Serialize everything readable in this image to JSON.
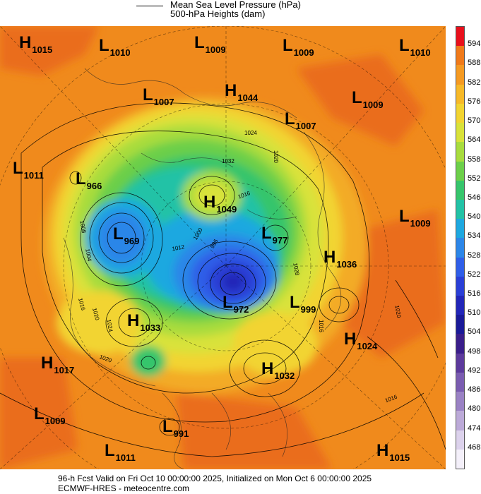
{
  "legend": {
    "line1": "Mean Sea Level Pressure (hPa)",
    "line2": "500-hPa Heights (dam)"
  },
  "pressure_labels": [
    {
      "type": "H",
      "value": "1015"
    },
    {
      "type": "L",
      "value": "1010"
    },
    {
      "type": "L",
      "value": "1009"
    },
    {
      "type": "L",
      "value": "1009"
    },
    {
      "type": "L",
      "value": "1010"
    },
    {
      "type": "L",
      "value": "1007"
    },
    {
      "type": "H",
      "value": "1044"
    },
    {
      "type": "L",
      "value": "1009"
    },
    {
      "type": "L",
      "value": "1007"
    },
    {
      "type": "L",
      "value": "1011"
    },
    {
      "type": "L",
      "value": "966"
    },
    {
      "type": "H",
      "value": "1049"
    },
    {
      "type": "L",
      "value": "969"
    },
    {
      "type": "L",
      "value": "977"
    },
    {
      "type": "L",
      "value": "1009"
    },
    {
      "type": "H",
      "value": "1036"
    },
    {
      "type": "L",
      "value": "972"
    },
    {
      "type": "L",
      "value": "999"
    },
    {
      "type": "H",
      "value": "1033"
    },
    {
      "type": "H",
      "value": "1024"
    },
    {
      "type": "H",
      "value": "1017"
    },
    {
      "type": "H",
      "value": "1032"
    },
    {
      "type": "L",
      "value": "1009"
    },
    {
      "type": "L",
      "value": "991"
    },
    {
      "type": "L",
      "value": "1011"
    },
    {
      "type": "H",
      "value": "1015"
    }
  ],
  "contour_labels": [
    "1032",
    "1024",
    "1020",
    "1016",
    "1012",
    "1008",
    "1004",
    "1000",
    "996",
    "1020",
    "1016",
    "1020",
    "1016",
    "1024",
    "1020",
    "1028",
    "1016"
  ],
  "colorbar": {
    "ticks": [
      "594",
      "588",
      "582",
      "576",
      "570",
      "564",
      "558",
      "552",
      "546",
      "540",
      "534",
      "528",
      "522",
      "516",
      "510",
      "504",
      "498",
      "492",
      "486",
      "480",
      "474",
      "468"
    ],
    "colors": [
      "#e8101c",
      "#f07a1a",
      "#f59a22",
      "#f7b928",
      "#f2d431",
      "#d9e23a",
      "#a8dc3e",
      "#6ccf4a",
      "#36c56c",
      "#22c2a6",
      "#1ea8e0",
      "#2c86e8",
      "#2f5ee8",
      "#2a3fd6",
      "#2226b8",
      "#1a1a98",
      "#3a1e8a",
      "#5c3a9c",
      "#7a5cb0",
      "#9a82c4",
      "#bcaad8",
      "#dcd2ec",
      "#f4f0fa"
    ]
  },
  "footer": {
    "line1": "96-h Fcst Valid on Fri Oct 10 00:00:00 2025, Initialized on Mon Oct  6 00:00:00 2025",
    "line2": "ECMWF-HRES  - meteocentre.com"
  }
}
